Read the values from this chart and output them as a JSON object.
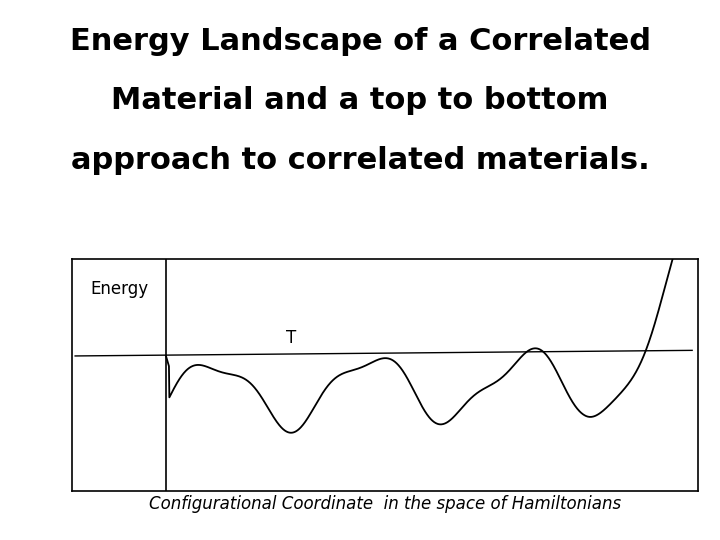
{
  "title_line1": "Energy Landscape of a Correlated",
  "title_line2": "Material and a top to bottom",
  "title_line3": "approach to correlated materials.",
  "ylabel": "Energy",
  "xlabel": "Configurational Coordinate  in the space of Hamiltonians",
  "T_label": "T",
  "background_color": "#ffffff",
  "line_color": "#000000",
  "title_fontsize": 22,
  "axis_label_fontsize": 12,
  "ylabel_fontsize": 12
}
